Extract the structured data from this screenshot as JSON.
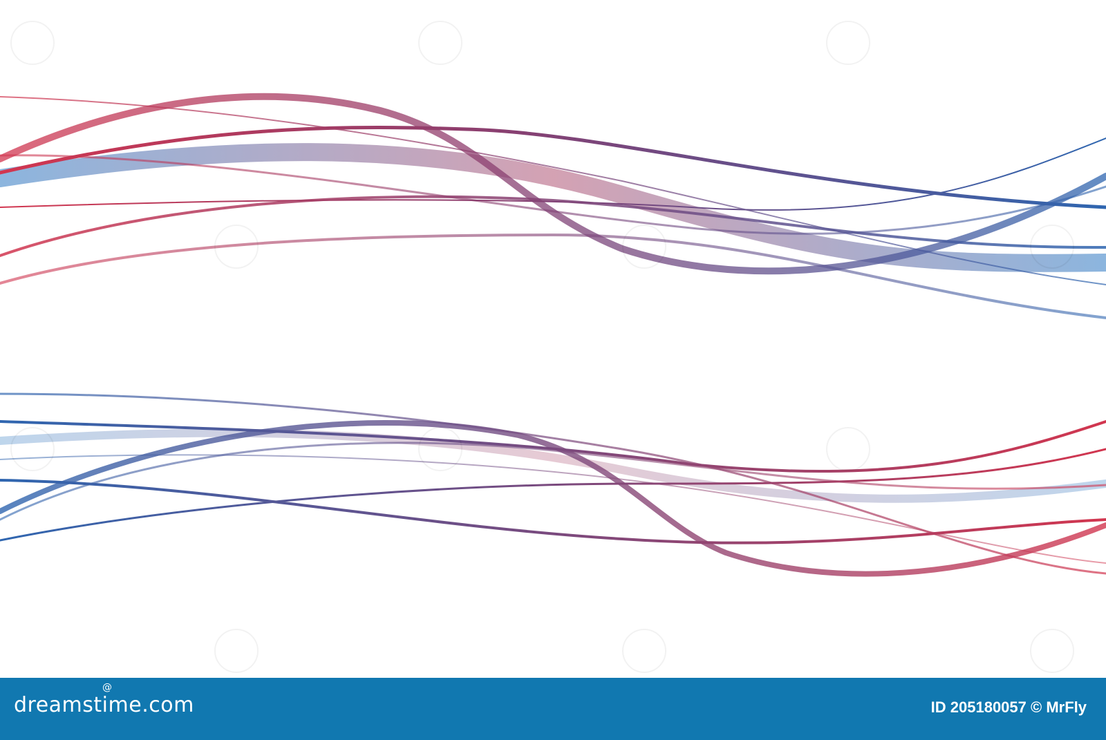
{
  "footer": {
    "brand": "dreamstime.com",
    "image_id": "ID 205180057 © MrFly",
    "background_color": "#1178b0"
  },
  "artwork": {
    "red_color": "#d2364f",
    "blue_color": "#2f66b0",
    "background_color": "#ffffff",
    "watermark": "dreamstime.com"
  }
}
